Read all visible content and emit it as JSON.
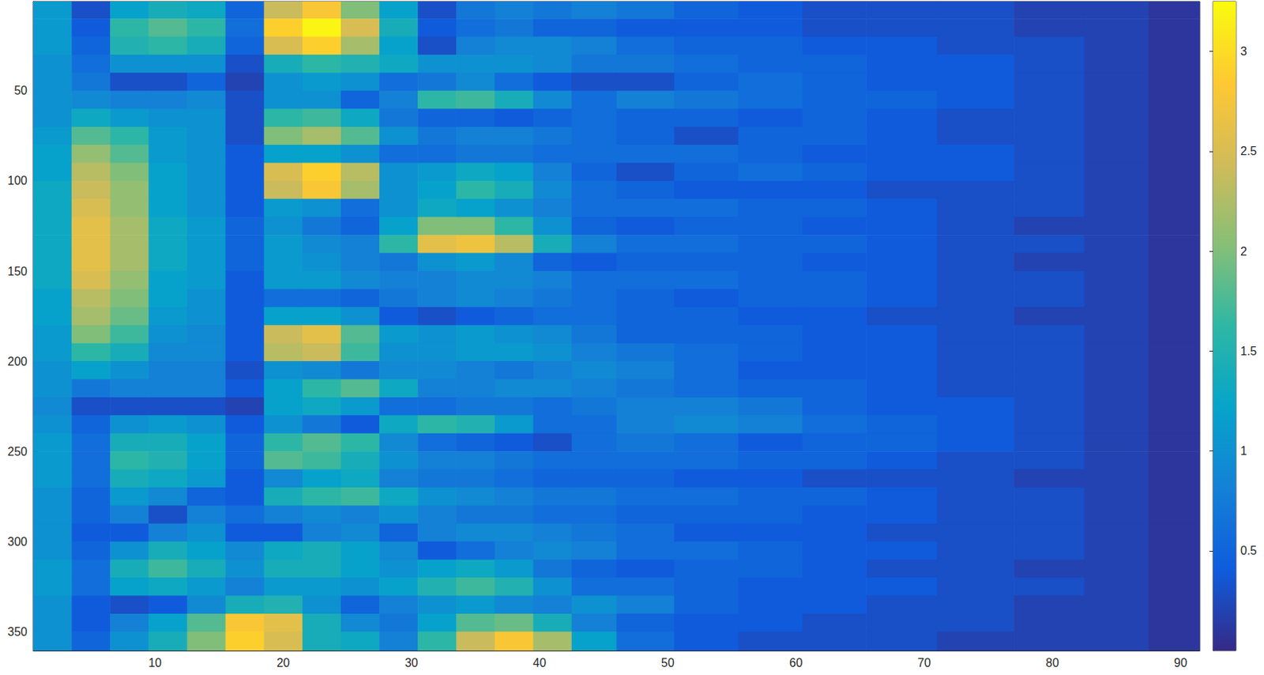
{
  "chart_data": {
    "type": "heatmap",
    "x": [
      2,
      5,
      8,
      11,
      14,
      17,
      20,
      23,
      26,
      29,
      32,
      35,
      38,
      41,
      44,
      48,
      53,
      58,
      63,
      68,
      74,
      80,
      85,
      90
    ],
    "y": [
      5,
      15,
      25,
      35,
      45,
      55,
      65,
      75,
      85,
      95,
      105,
      115,
      125,
      135,
      145,
      155,
      165,
      175,
      185,
      195,
      205,
      215,
      225,
      235,
      245,
      255,
      265,
      275,
      285,
      295,
      305,
      315,
      325,
      335,
      345,
      355
    ],
    "values": [
      [
        1.1,
        0.3,
        1.2,
        1.4,
        1.3,
        0.5,
        2.4,
        2.8,
        2.0,
        1.2,
        0.3,
        0.7,
        0.8,
        0.7,
        0.8,
        0.7,
        0.5,
        0.4,
        0.3,
        0.3,
        0.3,
        0.2,
        0.2,
        0.1
      ],
      [
        1.1,
        0.4,
        1.6,
        1.8,
        1.6,
        0.6,
        2.9,
        3.2,
        2.5,
        1.4,
        0.4,
        0.6,
        0.7,
        0.5,
        0.5,
        0.4,
        0.4,
        0.4,
        0.3,
        0.3,
        0.3,
        0.2,
        0.2,
        0.1
      ],
      [
        1.1,
        0.5,
        1.5,
        1.6,
        1.4,
        0.5,
        2.5,
        2.9,
        2.2,
        1.2,
        0.3,
        0.8,
        0.9,
        0.9,
        0.8,
        0.6,
        0.5,
        0.5,
        0.4,
        0.4,
        0.3,
        0.3,
        0.2,
        0.1
      ],
      [
        1.0,
        0.6,
        1.0,
        1.0,
        1.0,
        0.3,
        1.4,
        1.6,
        1.5,
        1.3,
        1.0,
        1.0,
        1.0,
        0.9,
        0.7,
        0.7,
        0.6,
        0.5,
        0.5,
        0.4,
        0.4,
        0.3,
        0.2,
        0.1
      ],
      [
        1.0,
        0.7,
        0.3,
        0.3,
        0.5,
        0.2,
        1.0,
        1.1,
        1.0,
        0.6,
        0.7,
        0.9,
        0.6,
        0.4,
        0.3,
        0.3,
        0.5,
        0.6,
        0.5,
        0.4,
        0.4,
        0.3,
        0.2,
        0.1
      ],
      [
        1.0,
        0.9,
        0.8,
        0.8,
        0.9,
        0.3,
        1.0,
        1.0,
        0.5,
        0.8,
        1.6,
        1.7,
        1.4,
        0.9,
        0.6,
        0.8,
        0.7,
        0.6,
        0.5,
        0.5,
        0.4,
        0.3,
        0.2,
        0.1
      ],
      [
        1.0,
        1.3,
        1.1,
        1.0,
        1.0,
        0.3,
        1.6,
        1.7,
        1.3,
        0.7,
        0.5,
        0.5,
        0.4,
        0.5,
        0.6,
        0.5,
        0.5,
        0.4,
        0.5,
        0.4,
        0.3,
        0.3,
        0.2,
        0.1
      ],
      [
        1.1,
        1.8,
        1.6,
        1.1,
        1.0,
        0.3,
        2.0,
        2.2,
        1.8,
        1.0,
        0.7,
        0.8,
        0.8,
        0.7,
        0.6,
        0.5,
        0.3,
        0.5,
        0.5,
        0.4,
        0.3,
        0.3,
        0.2,
        0.1
      ],
      [
        1.2,
        2.1,
        1.8,
        1.1,
        1.0,
        0.4,
        1.2,
        1.2,
        1.0,
        0.6,
        0.6,
        0.7,
        0.7,
        0.6,
        0.6,
        0.6,
        0.6,
        0.5,
        0.4,
        0.4,
        0.4,
        0.3,
        0.2,
        0.1
      ],
      [
        1.2,
        2.3,
        2.0,
        1.2,
        1.0,
        0.4,
        2.5,
        2.9,
        2.3,
        1.0,
        1.1,
        1.3,
        1.2,
        0.8,
        0.5,
        0.3,
        0.5,
        0.6,
        0.5,
        0.4,
        0.4,
        0.3,
        0.2,
        0.1
      ],
      [
        1.3,
        2.4,
        2.1,
        1.2,
        1.0,
        0.4,
        2.4,
        2.8,
        2.2,
        1.0,
        1.2,
        1.6,
        1.4,
        0.9,
        0.6,
        0.5,
        0.4,
        0.4,
        0.4,
        0.3,
        0.3,
        0.3,
        0.2,
        0.1
      ],
      [
        1.3,
        2.5,
        2.1,
        1.2,
        1.0,
        0.4,
        1.1,
        1.0,
        0.6,
        1.0,
        1.3,
        1.2,
        1.0,
        0.8,
        0.6,
        0.6,
        0.6,
        0.5,
        0.5,
        0.4,
        0.3,
        0.3,
        0.2,
        0.1
      ],
      [
        1.3,
        2.6,
        2.2,
        1.3,
        1.1,
        0.5,
        1.0,
        0.7,
        0.5,
        1.2,
        2.0,
        2.0,
        1.6,
        1.0,
        0.5,
        0.4,
        0.5,
        0.5,
        0.4,
        0.4,
        0.3,
        0.2,
        0.2,
        0.1
      ],
      [
        1.3,
        2.6,
        2.2,
        1.3,
        1.1,
        0.5,
        1.1,
        0.9,
        0.8,
        1.6,
        2.6,
        2.7,
        2.3,
        1.4,
        0.8,
        0.6,
        0.6,
        0.5,
        0.5,
        0.4,
        0.3,
        0.3,
        0.2,
        0.1
      ],
      [
        1.3,
        2.6,
        2.2,
        1.3,
        1.1,
        0.5,
        1.1,
        1.0,
        0.8,
        0.7,
        1.0,
        1.1,
        0.9,
        0.5,
        0.4,
        0.5,
        0.5,
        0.5,
        0.4,
        0.4,
        0.3,
        0.2,
        0.2,
        0.1
      ],
      [
        1.3,
        2.5,
        2.1,
        1.2,
        1.1,
        0.4,
        1.1,
        1.1,
        0.9,
        0.8,
        0.8,
        0.9,
        0.9,
        0.8,
        0.6,
        0.6,
        0.6,
        0.5,
        0.5,
        0.4,
        0.3,
        0.3,
        0.2,
        0.1
      ],
      [
        1.2,
        2.3,
        2.0,
        1.2,
        1.0,
        0.4,
        0.6,
        0.6,
        0.5,
        0.7,
        0.8,
        0.9,
        0.8,
        0.7,
        0.6,
        0.5,
        0.4,
        0.5,
        0.5,
        0.4,
        0.3,
        0.3,
        0.2,
        0.1
      ],
      [
        1.2,
        2.2,
        1.9,
        1.1,
        1.0,
        0.4,
        1.2,
        1.2,
        1.0,
        0.4,
        0.3,
        0.4,
        0.5,
        0.6,
        0.6,
        0.5,
        0.5,
        0.4,
        0.4,
        0.3,
        0.3,
        0.2,
        0.2,
        0.1
      ],
      [
        1.1,
        2.0,
        1.7,
        1.0,
        0.9,
        0.4,
        2.4,
        2.6,
        1.8,
        1.1,
        1.0,
        1.1,
        1.0,
        0.9,
        0.7,
        0.5,
        0.5,
        0.5,
        0.4,
        0.4,
        0.3,
        0.3,
        0.2,
        0.1
      ],
      [
        1.1,
        1.6,
        1.4,
        0.9,
        0.9,
        0.4,
        2.3,
        2.4,
        1.7,
        1.0,
        1.0,
        1.1,
        1.1,
        1.0,
        0.8,
        0.7,
        0.6,
        0.5,
        0.4,
        0.4,
        0.3,
        0.3,
        0.2,
        0.1
      ],
      [
        1.0,
        1.2,
        1.0,
        0.8,
        0.8,
        0.3,
        1.0,
        0.9,
        0.7,
        0.9,
        0.9,
        0.8,
        0.7,
        0.8,
        0.9,
        0.8,
        0.6,
        0.4,
        0.4,
        0.4,
        0.3,
        0.3,
        0.2,
        0.1
      ],
      [
        1.0,
        0.7,
        0.8,
        0.8,
        0.8,
        0.4,
        1.2,
        1.6,
        1.8,
        1.3,
        0.8,
        0.8,
        0.9,
        0.9,
        0.8,
        0.7,
        0.6,
        0.5,
        0.5,
        0.4,
        0.3,
        0.3,
        0.2,
        0.1
      ],
      [
        0.9,
        0.3,
        0.3,
        0.3,
        0.3,
        0.2,
        1.2,
        1.3,
        1.1,
        0.6,
        0.6,
        0.7,
        0.7,
        0.6,
        0.7,
        0.8,
        0.8,
        0.7,
        0.5,
        0.4,
        0.4,
        0.3,
        0.2,
        0.1
      ],
      [
        1.0,
        0.5,
        1.0,
        1.1,
        1.0,
        0.4,
        1.0,
        0.7,
        0.4,
        1.3,
        1.6,
        1.5,
        1.1,
        0.6,
        0.6,
        0.8,
        0.9,
        0.8,
        0.6,
        0.5,
        0.4,
        0.3,
        0.2,
        0.1
      ],
      [
        1.1,
        0.6,
        1.4,
        1.4,
        1.2,
        0.5,
        1.6,
        1.8,
        1.6,
        0.9,
        0.6,
        0.5,
        0.4,
        0.3,
        0.6,
        0.7,
        0.6,
        0.4,
        0.5,
        0.5,
        0.4,
        0.3,
        0.2,
        0.1
      ],
      [
        1.1,
        0.6,
        1.6,
        1.5,
        1.2,
        0.5,
        1.8,
        1.7,
        1.4,
        1.0,
        0.8,
        0.8,
        0.7,
        0.6,
        0.6,
        0.6,
        0.6,
        0.5,
        0.5,
        0.4,
        0.3,
        0.3,
        0.2,
        0.1
      ],
      [
        1.1,
        0.6,
        1.4,
        1.3,
        1.1,
        0.4,
        0.9,
        1.2,
        1.3,
        0.8,
        0.7,
        0.7,
        0.6,
        0.5,
        0.5,
        0.5,
        0.4,
        0.4,
        0.3,
        0.3,
        0.3,
        0.2,
        0.2,
        0.1
      ],
      [
        1.0,
        0.5,
        1.1,
        0.9,
        0.5,
        0.4,
        1.4,
        1.6,
        1.7,
        1.3,
        1.0,
        0.9,
        0.8,
        0.7,
        0.7,
        0.6,
        0.6,
        0.5,
        0.5,
        0.4,
        0.3,
        0.3,
        0.2,
        0.1
      ],
      [
        1.0,
        0.5,
        0.8,
        0.3,
        0.8,
        0.6,
        0.8,
        0.9,
        0.8,
        1.0,
        0.8,
        0.7,
        0.7,
        0.6,
        0.6,
        0.5,
        0.5,
        0.5,
        0.4,
        0.4,
        0.3,
        0.3,
        0.2,
        0.1
      ],
      [
        1.0,
        0.4,
        0.4,
        0.8,
        1.0,
        0.4,
        0.4,
        0.8,
        0.9,
        0.5,
        0.8,
        0.9,
        0.9,
        0.8,
        0.7,
        0.6,
        0.4,
        0.4,
        0.4,
        0.3,
        0.3,
        0.3,
        0.2,
        0.1
      ],
      [
        1.0,
        0.5,
        1.0,
        1.4,
        1.2,
        0.9,
        1.3,
        1.4,
        1.2,
        0.9,
        0.4,
        0.6,
        0.8,
        0.9,
        0.8,
        0.6,
        0.6,
        0.5,
        0.4,
        0.4,
        0.3,
        0.3,
        0.2,
        0.1
      ],
      [
        1.1,
        0.6,
        1.4,
        1.7,
        1.4,
        1.0,
        1.4,
        1.4,
        1.2,
        1.0,
        1.2,
        1.3,
        1.1,
        0.7,
        0.5,
        0.4,
        0.5,
        0.5,
        0.4,
        0.3,
        0.3,
        0.2,
        0.2,
        0.1
      ],
      [
        1.1,
        0.6,
        1.2,
        1.3,
        1.1,
        0.8,
        1.1,
        1.1,
        1.0,
        1.2,
        1.5,
        1.7,
        1.5,
        1.0,
        0.6,
        0.6,
        0.5,
        0.4,
        0.4,
        0.4,
        0.3,
        0.3,
        0.2,
        0.1
      ],
      [
        1.0,
        0.4,
        0.3,
        0.4,
        0.9,
        1.4,
        1.5,
        1.0,
        0.5,
        0.8,
        1.0,
        1.1,
        0.9,
        0.8,
        1.0,
        0.8,
        0.5,
        0.4,
        0.4,
        0.3,
        0.3,
        0.2,
        0.2,
        0.1
      ],
      [
        1.0,
        0.4,
        0.8,
        1.2,
        1.8,
        2.8,
        2.6,
        1.4,
        0.9,
        0.7,
        1.2,
        1.8,
        1.9,
        1.4,
        0.8,
        0.5,
        0.4,
        0.4,
        0.3,
        0.3,
        0.3,
        0.2,
        0.2,
        0.1
      ],
      [
        1.0,
        0.5,
        1.0,
        1.4,
        2.0,
        2.9,
        2.5,
        1.4,
        1.3,
        0.8,
        1.6,
        2.4,
        2.8,
        2.2,
        1.2,
        0.6,
        0.4,
        0.3,
        0.3,
        0.3,
        0.2,
        0.2,
        0.2,
        0.1
      ]
    ],
    "xlim": [
      0.5,
      91.5
    ],
    "xticks": [
      10,
      20,
      30,
      40,
      50,
      60,
      70,
      80,
      90
    ],
    "ylim": [
      0.5,
      360.5
    ],
    "yticks": [
      50,
      100,
      150,
      200,
      250,
      300,
      350
    ],
    "colorbar_range": [
      0,
      3.25
    ],
    "colorbar_ticks": [
      0.5,
      1,
      1.5,
      2,
      2.5,
      3
    ],
    "grid": false
  }
}
